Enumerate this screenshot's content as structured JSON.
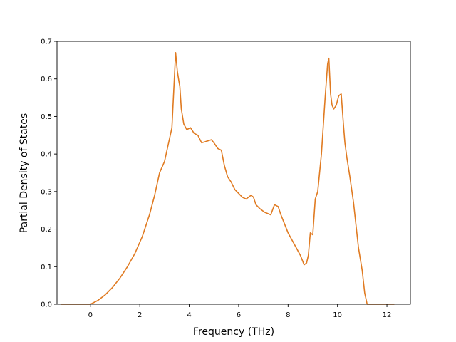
{
  "chart_data": {
    "type": "line",
    "title": "",
    "xlabel": "Frequency (THz)",
    "ylabel": "Partial Density of States",
    "xlim": [
      -1.35,
      12.95
    ],
    "ylim": [
      0.0,
      0.7
    ],
    "xticks": [
      0,
      2,
      4,
      6,
      8,
      10,
      12
    ],
    "xtick_labels": [
      "0",
      "2",
      "4",
      "6",
      "8",
      "10",
      "12"
    ],
    "yticks": [
      0.0,
      0.1,
      0.2,
      0.3,
      0.4,
      0.5,
      0.6,
      0.7
    ],
    "ytick_labels": [
      "0.0",
      "0.1",
      "0.2",
      "0.3",
      "0.4",
      "0.5",
      "0.6",
      "0.7"
    ],
    "grid": false,
    "series": [
      {
        "color": "#e07b22",
        "x": [
          -1.2,
          0.0,
          0.3,
          0.6,
          0.9,
          1.2,
          1.5,
          1.8,
          2.1,
          2.4,
          2.6,
          2.8,
          3.0,
          3.1,
          3.3,
          3.45,
          3.52,
          3.58,
          3.62,
          3.68,
          3.78,
          3.9,
          4.05,
          4.2,
          4.35,
          4.5,
          4.62,
          4.75,
          4.9,
          5.0,
          5.15,
          5.3,
          5.42,
          5.55,
          5.7,
          5.85,
          6.0,
          6.15,
          6.3,
          6.5,
          6.6,
          6.7,
          6.85,
          7.05,
          7.3,
          7.45,
          7.6,
          7.7,
          7.85,
          8.0,
          8.25,
          8.5,
          8.65,
          8.75,
          8.82,
          8.9,
          9.0,
          9.1,
          9.2,
          9.35,
          9.5,
          9.6,
          9.65,
          9.72,
          9.78,
          9.85,
          9.95,
          10.05,
          10.15,
          10.25,
          10.3,
          10.38,
          10.5,
          10.65,
          10.85,
          11.0,
          11.1,
          11.2,
          12.3
        ],
        "y": [
          0.0,
          0.0,
          0.01,
          0.025,
          0.045,
          0.07,
          0.1,
          0.135,
          0.18,
          0.24,
          0.29,
          0.35,
          0.38,
          0.41,
          0.47,
          0.67,
          0.62,
          0.595,
          0.58,
          0.52,
          0.48,
          0.465,
          0.47,
          0.455,
          0.45,
          0.43,
          0.432,
          0.435,
          0.438,
          0.43,
          0.415,
          0.41,
          0.37,
          0.34,
          0.325,
          0.305,
          0.295,
          0.285,
          0.28,
          0.29,
          0.285,
          0.265,
          0.255,
          0.245,
          0.238,
          0.265,
          0.26,
          0.24,
          0.215,
          0.19,
          0.16,
          0.13,
          0.105,
          0.11,
          0.13,
          0.19,
          0.185,
          0.28,
          0.3,
          0.4,
          0.55,
          0.64,
          0.655,
          0.56,
          0.53,
          0.52,
          0.53,
          0.555,
          0.56,
          0.47,
          0.43,
          0.39,
          0.34,
          0.27,
          0.15,
          0.09,
          0.03,
          0.0,
          0.0
        ]
      }
    ]
  }
}
